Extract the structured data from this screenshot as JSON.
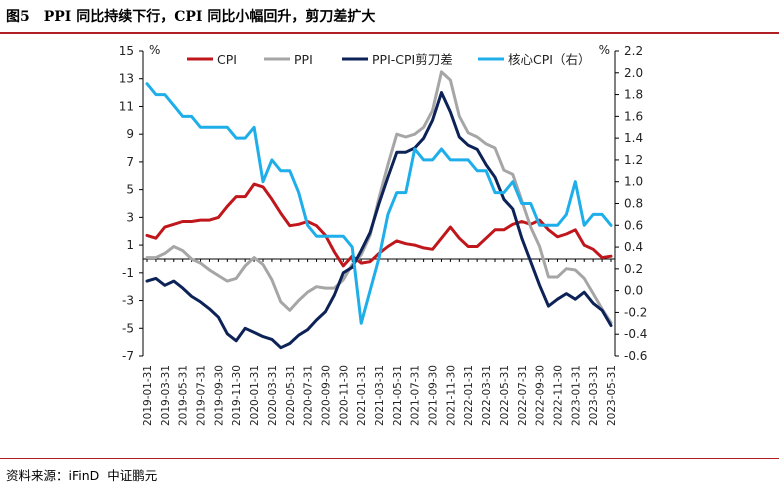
{
  "figure": {
    "number": "图5",
    "title": "PPI 同比持续下行，CPI 同比小幅回升，剪刀差扩大"
  },
  "source": {
    "label": "资料来源：iFinD",
    "org": "中证鹏元"
  },
  "chart_data": {
    "type": "line",
    "title": "",
    "y_left": {
      "unit": "%",
      "range": [
        -7,
        15
      ],
      "ticks": [
        -7,
        -5,
        -3,
        -1,
        1,
        3,
        5,
        7,
        9,
        11,
        13,
        15
      ]
    },
    "y_right": {
      "unit": "%",
      "range": [
        -0.6,
        2.2
      ],
      "ticks": [
        "-0.6",
        "-0.4",
        "-0.2",
        "0.0",
        "0.2",
        "0.4",
        "0.6",
        "0.8",
        "1.0",
        "1.2",
        "1.4",
        "1.6",
        "1.8",
        "2.0",
        "2.2"
      ]
    },
    "x_tick_labels": [
      "2019-01-31",
      "2019-03-31",
      "2019-05-31",
      "2019-07-31",
      "2019-09-30",
      "2019-11-30",
      "2020-01-31",
      "2020-03-31",
      "2020-05-31",
      "2020-07-31",
      "2020-09-30",
      "2020-11-30",
      "2021-01-31",
      "2021-03-31",
      "2021-05-31",
      "2021-07-31",
      "2021-09-30",
      "2021-11-30",
      "2022-01-31",
      "2022-03-31",
      "2022-05-31",
      "2022-07-31",
      "2022-09-30",
      "2022-11-30",
      "2023-01-31",
      "2023-03-31",
      "2023-05-31"
    ],
    "x": [
      "2019-01",
      "2019-02",
      "2019-03",
      "2019-04",
      "2019-05",
      "2019-06",
      "2019-07",
      "2019-08",
      "2019-09",
      "2019-10",
      "2019-11",
      "2019-12",
      "2020-01",
      "2020-02",
      "2020-03",
      "2020-04",
      "2020-05",
      "2020-06",
      "2020-07",
      "2020-08",
      "2020-09",
      "2020-10",
      "2020-11",
      "2020-12",
      "2021-01",
      "2021-02",
      "2021-03",
      "2021-04",
      "2021-05",
      "2021-06",
      "2021-07",
      "2021-08",
      "2021-09",
      "2021-10",
      "2021-11",
      "2021-12",
      "2022-01",
      "2022-02",
      "2022-03",
      "2022-04",
      "2022-05",
      "2022-06",
      "2022-07",
      "2022-08",
      "2022-09",
      "2022-10",
      "2022-11",
      "2022-12",
      "2023-01",
      "2023-02",
      "2023-03",
      "2023-04",
      "2023-05"
    ],
    "series": [
      {
        "name": "CPI",
        "axis": "left",
        "color": "#c0171c",
        "values": [
          1.7,
          1.5,
          2.3,
          2.5,
          2.7,
          2.7,
          2.8,
          2.8,
          3.0,
          3.8,
          4.5,
          4.5,
          5.4,
          5.2,
          4.3,
          3.3,
          2.4,
          2.5,
          2.7,
          2.4,
          1.7,
          0.5,
          -0.5,
          0.2,
          -0.3,
          -0.2,
          0.4,
          0.9,
          1.3,
          1.1,
          1.0,
          0.8,
          0.7,
          1.5,
          2.3,
          1.5,
          0.9,
          0.9,
          1.5,
          2.1,
          2.1,
          2.5,
          2.7,
          2.5,
          2.8,
          2.1,
          1.6,
          1.8,
          2.1,
          1.0,
          0.7,
          0.1,
          0.2
        ]
      },
      {
        "name": "PPI",
        "axis": "left",
        "color": "#a6a6a6",
        "values": [
          0.1,
          0.1,
          0.4,
          0.9,
          0.6,
          0.0,
          -0.3,
          -0.8,
          -1.2,
          -1.6,
          -1.4,
          -0.5,
          0.1,
          -0.4,
          -1.5,
          -3.1,
          -3.7,
          -3.0,
          -2.4,
          -2.0,
          -2.1,
          -2.1,
          -1.5,
          -0.4,
          0.3,
          1.7,
          4.4,
          6.8,
          9.0,
          8.8,
          9.0,
          9.5,
          10.7,
          13.5,
          12.9,
          10.3,
          9.1,
          8.8,
          8.3,
          8.0,
          6.4,
          6.1,
          4.2,
          2.3,
          0.9,
          -1.3,
          -1.3,
          -0.7,
          -0.8,
          -1.4,
          -2.5,
          -3.6,
          -4.6
        ]
      },
      {
        "name": "PPI-CPI剪刀差",
        "axis": "left",
        "color": "#0d2257",
        "values": [
          -1.6,
          -1.4,
          -1.9,
          -1.6,
          -2.1,
          -2.7,
          -3.1,
          -3.6,
          -4.2,
          -5.4,
          -5.9,
          -5.0,
          -5.3,
          -5.6,
          -5.8,
          -6.4,
          -6.1,
          -5.5,
          -5.1,
          -4.4,
          -3.8,
          -2.6,
          -1.0,
          -0.6,
          0.6,
          1.9,
          4.0,
          5.9,
          7.7,
          7.7,
          8.0,
          8.7,
          10.0,
          12.0,
          10.6,
          8.8,
          8.2,
          7.9,
          6.8,
          5.9,
          4.3,
          3.6,
          1.5,
          -0.2,
          -1.9,
          -3.4,
          -2.9,
          -2.5,
          -2.9,
          -2.4,
          -3.2,
          -3.7,
          -4.8
        ]
      },
      {
        "name": "核心CPI（右）",
        "axis": "right",
        "color": "#1eaeea",
        "values": [
          1.9,
          1.8,
          1.8,
          1.7,
          1.6,
          1.6,
          1.5,
          1.5,
          1.5,
          1.5,
          1.4,
          1.4,
          1.5,
          1.0,
          1.2,
          1.1,
          1.1,
          0.9,
          0.6,
          0.5,
          0.5,
          0.5,
          0.5,
          0.4,
          -0.3,
          0.0,
          0.3,
          0.7,
          0.9,
          0.9,
          1.3,
          1.2,
          1.2,
          1.3,
          1.2,
          1.2,
          1.2,
          1.1,
          1.1,
          0.9,
          0.9,
          1.0,
          0.8,
          0.8,
          0.6,
          0.6,
          0.6,
          0.7,
          1.0,
          0.6,
          0.7,
          0.7,
          0.6
        ]
      }
    ],
    "legend_position": "top",
    "grid": false
  }
}
